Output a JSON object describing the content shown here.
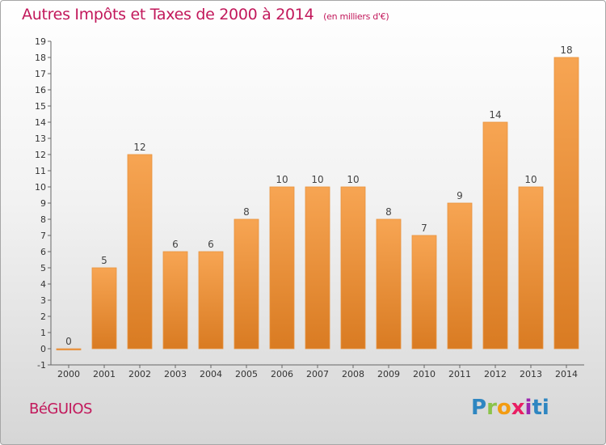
{
  "page": {
    "title": "Autres Impôts et Taxes de 2000 à 2014",
    "title_unit": "(en milliers d'€)",
    "commune": "BéGUIOS",
    "logo_letters": [
      "P",
      "r",
      "o",
      "x",
      "i",
      "ti"
    ]
  },
  "colors": {
    "title": "#c2185b",
    "bar_light": "#f7a553",
    "bar_dark": "#d97b22",
    "grid": "#cfcfcf"
  },
  "chart_data": {
    "type": "bar",
    "title": "Autres Impôts et Taxes de 2000 à 2014",
    "subtitle": "(en milliers d'€)",
    "xlabel": "",
    "ylabel": "",
    "ylim": [
      -1,
      19
    ],
    "yticks": [
      -1,
      0,
      1,
      2,
      3,
      4,
      5,
      6,
      7,
      8,
      9,
      10,
      11,
      12,
      13,
      14,
      15,
      16,
      17,
      18,
      19
    ],
    "grid": false,
    "categories": [
      "2000",
      "2001",
      "2002",
      "2003",
      "2004",
      "2005",
      "2006",
      "2007",
      "2008",
      "2009",
      "2010",
      "2011",
      "2012",
      "2013",
      "2014"
    ],
    "values": [
      0,
      5,
      12,
      6,
      6,
      8,
      10,
      10,
      10,
      8,
      7,
      9,
      14,
      10,
      18
    ]
  }
}
